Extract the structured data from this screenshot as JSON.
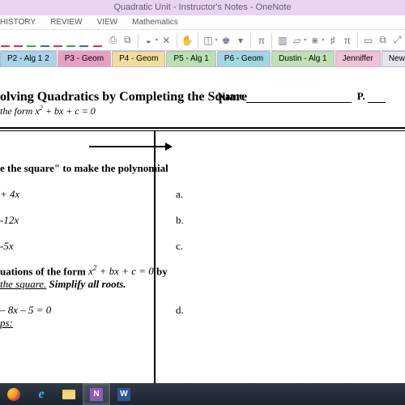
{
  "window": {
    "title": "Quadratic Unit - Instructor's Notes - OneNote"
  },
  "menu": {
    "items": [
      "HISTORY",
      "REVIEW",
      "VIEW",
      "Mathematics"
    ]
  },
  "toolbar": {
    "pen_colors": [
      "#d4314a",
      "#d4314a",
      "#2faa3a",
      "#3664d8",
      "#d4314a",
      "#2faa3a",
      "#3664d8",
      "#d4314a"
    ],
    "icons": {
      "print": "⎙",
      "screenshot": "⧉",
      "eraser": "◒",
      "delete": "✕",
      "hand": "✋",
      "lasso": "◫",
      "favorite": "♚",
      "dropdown": "▾",
      "pi1": "π",
      "pin": "▥",
      "highlight": "▱",
      "hash": "⋇",
      "grid": "♯",
      "pi2": "π",
      "page": "▭",
      "copy": "⧉",
      "expand": "⤢"
    }
  },
  "tabs": [
    {
      "label": "P2 - Alg 1 2",
      "bg": "#a7d4ea"
    },
    {
      "label": "P3 - Geom",
      "bg": "#e79fc4"
    },
    {
      "label": "P4 - Geom",
      "bg": "#f2dd9b"
    },
    {
      "label": "P5 - Alg 1",
      "bg": "#b7e2af"
    },
    {
      "label": "P6 - Geom",
      "bg": "#9fd7e2"
    },
    {
      "label": "Dustin - Alg 1",
      "bg": "#c0e0b6"
    },
    {
      "label": "Jenniffer",
      "bg": "#f1c1d8"
    },
    {
      "label": "New Section 1",
      "bg": "#e8e3ec"
    }
  ],
  "doc": {
    "title": "olving Quadratics by Completing the Square",
    "subtitle_prefix": "the form ",
    "name_label": "Name",
    "p_label": "P.",
    "prompt1_a": "e the square\" to make the polynomial",
    "rows": [
      {
        "l": "+ 4x",
        "r": "a."
      },
      {
        "l": "-12x",
        "r": "b."
      },
      {
        "l": "-5x",
        "r": "c."
      }
    ],
    "prompt2_a": "uations of the form ",
    "prompt2_b": " by",
    "prompt2_c": " the square.",
    "prompt2_d": "    Simplify all roots.",
    "eq2": "– 8x – 5 = 0",
    "d_label": "d.",
    "steps": "ps:"
  },
  "taskbar": {
    "onenote": "N",
    "word": "W"
  },
  "formula": {
    "x2": "x",
    "sup": "2",
    "rest": " + bx + c = 0"
  }
}
